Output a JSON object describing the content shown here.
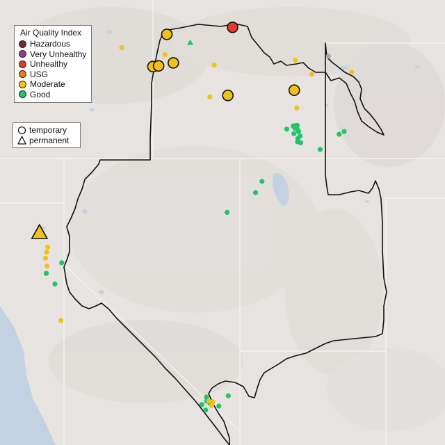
{
  "legend": {
    "title": "Air Quality Index",
    "categories": [
      {
        "label": "Hazardous",
        "color": "#7e2a34"
      },
      {
        "label": "Very Unhealthy",
        "color": "#8f3f97"
      },
      {
        "label": "Unhealthy",
        "color": "#e53a2a"
      },
      {
        "label": "USG",
        "color": "#f07c18"
      },
      {
        "label": "Moderate",
        "color": "#f2c219"
      },
      {
        "label": "Good",
        "color": "#26c26a"
      }
    ]
  },
  "monitor_types": [
    {
      "label": "temporary",
      "icon": "circle-outline-icon"
    },
    {
      "label": "permanent",
      "icon": "triangle-outline-icon"
    }
  ],
  "map_colors": {
    "land": "#e6e3e0",
    "water": "#c3d2e3",
    "boundary": "#111111",
    "state_line": "#f6f6f6",
    "no_data": "#a7a9ab"
  },
  "monitors": [
    {
      "lon": -115.72,
      "lat": 48.95,
      "aqi": "Unhealthy",
      "type": "temporary"
    },
    {
      "lon": -117.55,
      "lat": 48.72,
      "aqi": "Moderate",
      "type": "temporary"
    },
    {
      "lon": -117.94,
      "lat": 47.66,
      "aqi": "Moderate",
      "type": "temporary"
    },
    {
      "lon": -117.78,
      "lat": 47.68,
      "aqi": "Moderate",
      "type": "temporary"
    },
    {
      "lon": -117.37,
      "lat": 47.78,
      "aqi": "Moderate",
      "type": "temporary"
    },
    {
      "lon": -115.85,
      "lat": 46.71,
      "aqi": "Moderate",
      "type": "temporary"
    },
    {
      "lon": -114.0,
      "lat": 46.88,
      "aqi": "Moderate",
      "type": "temporary"
    },
    {
      "lon": -121.1,
      "lat": 42.2,
      "aqi": "Moderate",
      "type": "permanent"
    },
    {
      "lon": -120.5,
      "lat": 39.3,
      "aqi": "Moderate",
      "type": "temporary"
    },
    {
      "lon": -118.81,
      "lat": 48.28,
      "aqi": "Moderate",
      "type": "temporary"
    },
    {
      "lon": -117.6,
      "lat": 48.05,
      "aqi": "Moderate",
      "type": "temporary"
    },
    {
      "lon": -116.23,
      "lat": 47.71,
      "aqi": "Moderate",
      "type": "temporary"
    },
    {
      "lon": -113.97,
      "lat": 47.87,
      "aqi": "Moderate",
      "type": "temporary"
    },
    {
      "lon": -113.51,
      "lat": 47.41,
      "aqi": "Moderate",
      "type": "temporary"
    },
    {
      "lon": -112.4,
      "lat": 47.47,
      "aqi": "Moderate",
      "type": "temporary"
    },
    {
      "lon": -116.35,
      "lat": 46.66,
      "aqi": "Moderate",
      "type": "temporary"
    },
    {
      "lon": -113.93,
      "lat": 46.3,
      "aqi": "Moderate",
      "type": "temporary"
    },
    {
      "lon": -120.87,
      "lat": 41.72,
      "aqi": "Moderate",
      "type": "temporary"
    },
    {
      "lon": -120.9,
      "lat": 41.55,
      "aqi": "Moderate",
      "type": "temporary"
    },
    {
      "lon": -120.93,
      "lat": 41.35,
      "aqi": "Moderate",
      "type": "temporary"
    },
    {
      "lon": -120.89,
      "lat": 41.09,
      "aqi": "Moderate",
      "type": "temporary"
    },
    {
      "lon": -116.38,
      "lat": 36.65,
      "aqi": "Moderate",
      "type": "temporary"
    },
    {
      "lon": -116.3,
      "lat": 36.5,
      "aqi": "Moderate",
      "type": "temporary"
    },
    {
      "lon": -116.27,
      "lat": 36.62,
      "aqi": "Moderate",
      "type": "temporary"
    },
    {
      "lon": -116.9,
      "lat": 48.45,
      "aqi": "Good",
      "type": "permanent"
    },
    {
      "lon": -113.92,
      "lat": 45.72,
      "aqi": "Good",
      "type": "temporary"
    },
    {
      "lon": -113.99,
      "lat": 45.71,
      "aqi": "Good",
      "type": "temporary"
    },
    {
      "lon": -114.03,
      "lat": 45.7,
      "aqi": "Good",
      "type": "temporary"
    },
    {
      "lon": -113.98,
      "lat": 45.63,
      "aqi": "Good",
      "type": "temporary"
    },
    {
      "lon": -113.92,
      "lat": 45.6,
      "aqi": "Good",
      "type": "temporary"
    },
    {
      "lon": -113.88,
      "lat": 45.52,
      "aqi": "Good",
      "type": "temporary"
    },
    {
      "lon": -114.01,
      "lat": 45.45,
      "aqi": "Good",
      "type": "temporary"
    },
    {
      "lon": -113.84,
      "lat": 45.37,
      "aqi": "Good",
      "type": "temporary"
    },
    {
      "lon": -113.9,
      "lat": 45.29,
      "aqi": "Good",
      "type": "temporary"
    },
    {
      "lon": -113.91,
      "lat": 45.18,
      "aqi": "Good",
      "type": "temporary"
    },
    {
      "lon": -113.82,
      "lat": 45.15,
      "aqi": "Good",
      "type": "temporary"
    },
    {
      "lon": -114.21,
      "lat": 45.6,
      "aqi": "Good",
      "type": "temporary"
    },
    {
      "lon": -112.61,
      "lat": 45.52,
      "aqi": "Good",
      "type": "temporary"
    },
    {
      "lon": -112.75,
      "lat": 45.43,
      "aqi": "Good",
      "type": "temporary"
    },
    {
      "lon": -113.28,
      "lat": 44.93,
      "aqi": "Good",
      "type": "temporary"
    },
    {
      "lon": -114.9,
      "lat": 43.88,
      "aqi": "Good",
      "type": "temporary"
    },
    {
      "lon": -115.08,
      "lat": 43.51,
      "aqi": "Good",
      "type": "temporary"
    },
    {
      "lon": -115.87,
      "lat": 42.86,
      "aqi": "Good",
      "type": "temporary"
    },
    {
      "lon": -120.48,
      "lat": 41.2,
      "aqi": "Good",
      "type": "temporary"
    },
    {
      "lon": -120.91,
      "lat": 40.85,
      "aqi": "Good",
      "type": "temporary"
    },
    {
      "lon": -120.67,
      "lat": 40.5,
      "aqi": "Good",
      "type": "temporary"
    },
    {
      "lon": -116.45,
      "lat": 36.78,
      "aqi": "Good",
      "type": "temporary"
    },
    {
      "lon": -116.44,
      "lat": 36.65,
      "aqi": "Good",
      "type": "temporary"
    },
    {
      "lon": -116.35,
      "lat": 36.58,
      "aqi": "Good",
      "type": "temporary"
    },
    {
      "lon": -116.1,
      "lat": 36.48,
      "aqi": "Good",
      "type": "temporary"
    },
    {
      "lon": -116.47,
      "lat": 36.35,
      "aqi": "Good",
      "type": "temporary"
    },
    {
      "lon": -116.58,
      "lat": 36.53,
      "aqi": "Good",
      "type": "temporary"
    },
    {
      "lon": -115.84,
      "lat": 36.82,
      "aqi": "Good",
      "type": "temporary"
    },
    {
      "lon": -113.05,
      "lat": 48.0,
      "aqi": "No Data",
      "type": "temporary"
    }
  ]
}
